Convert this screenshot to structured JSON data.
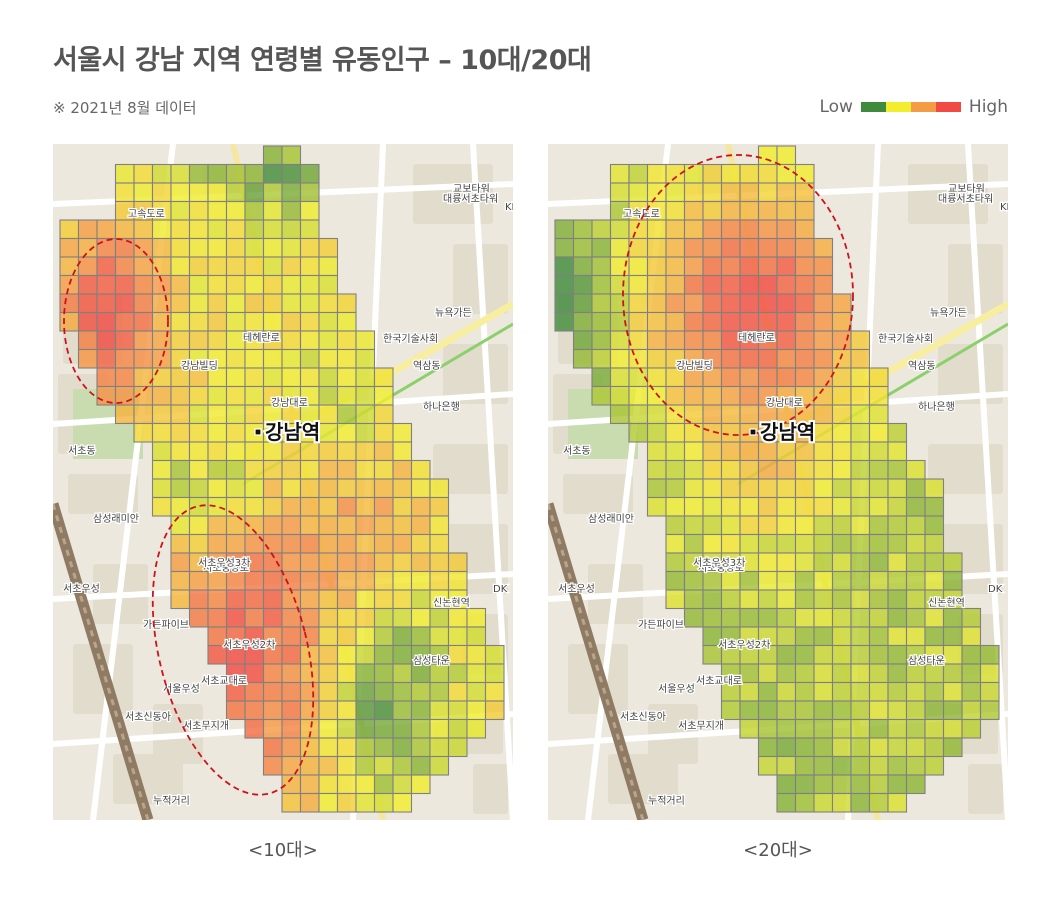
{
  "title": "서울시 강남 지역 연령별 유동인구 – 10대/20대",
  "note": "※ 2021년 8월 데이터",
  "legend": {
    "low_label": "Low",
    "high_label": "High",
    "colors": [
      "#3f8a3c",
      "#f2ee2e",
      "#f59b45",
      "#f04a42"
    ]
  },
  "station_label": "강남역",
  "map_labels": [
    "고속도로",
    "뉴욕가든",
    "테헤란로",
    "강남빌딩",
    "서초동",
    "역삼동",
    "강남대로",
    "삼성래미안",
    "서초중앙로",
    "서초우성",
    "신논현역",
    "교보타워",
    "대륭서초타워",
    "한국기술사회",
    "하나은행",
    "가든파이브",
    "서초우성3차",
    "서초우성2차",
    "서초교대로",
    "서울우성",
    "삼성타운",
    "서초신동아",
    "서초무지개",
    "누적거리",
    "DK",
    "KB국민"
  ],
  "panels": [
    {
      "id": "teens",
      "caption": "<10대>"
    },
    {
      "id": "twenties",
      "caption": "<20대>"
    }
  ]
}
